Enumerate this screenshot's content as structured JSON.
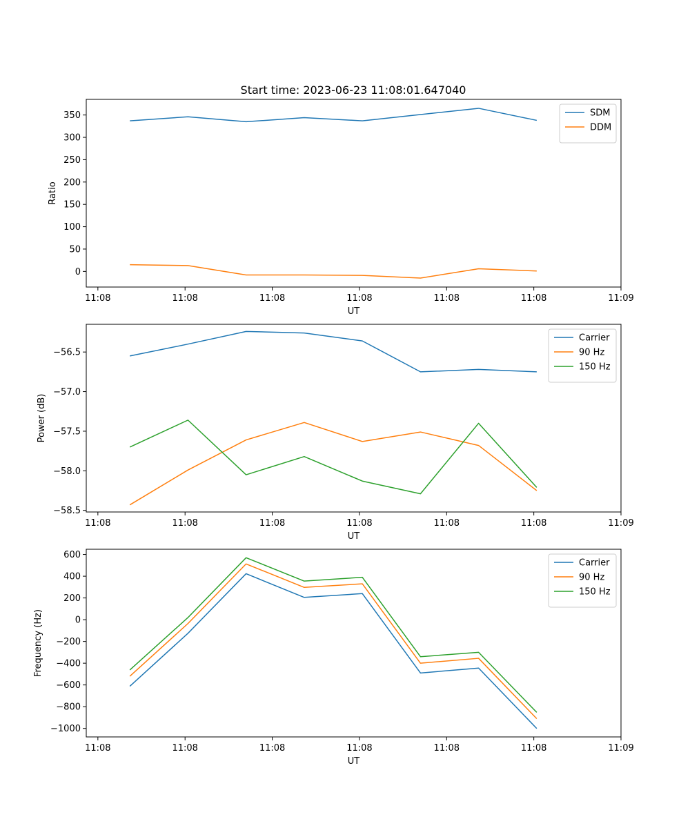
{
  "title": "Start time: 2023-06-23 11:08:01.647040",
  "chart_data": [
    {
      "type": "line",
      "title": "Start time: 2023-06-23 11:08:01.647040",
      "xlabel": "UT",
      "ylabel": "Ratio",
      "x": [
        1.0,
        2.0,
        3.0,
        4.0,
        5.0,
        6.0,
        7.0,
        8.0
      ],
      "xlim": [
        0.25,
        9.45
      ],
      "xticks": [
        0.45,
        1.95,
        3.45,
        4.95,
        6.45,
        7.95,
        9.45
      ],
      "xticklabels": [
        "11:08",
        "11:08",
        "11:08",
        "11:08",
        "11:08",
        "11:08",
        "11:09"
      ],
      "ylim": [
        -35,
        385
      ],
      "yticks": [
        0,
        50,
        100,
        150,
        200,
        250,
        300,
        350
      ],
      "yticklabels": [
        "0",
        "50",
        "100",
        "150",
        "200",
        "250",
        "300",
        "350"
      ],
      "legend": "top-right",
      "series": [
        {
          "name": "SDM",
          "color": "#1f77b4",
          "values": [
            337,
            346,
            335,
            344,
            337,
            351,
            365,
            338
          ]
        },
        {
          "name": "DDM",
          "color": "#ff7f0e",
          "values": [
            15,
            13,
            -8,
            -8,
            -9,
            -15,
            6,
            1
          ]
        }
      ]
    },
    {
      "type": "line",
      "xlabel": "UT",
      "ylabel": "Power (dB)",
      "x": [
        1.0,
        2.0,
        3.0,
        4.0,
        5.0,
        6.0,
        7.0,
        8.0
      ],
      "xlim": [
        0.25,
        9.45
      ],
      "xticks": [
        0.45,
        1.95,
        3.45,
        4.95,
        6.45,
        7.95,
        9.45
      ],
      "xticklabels": [
        "11:08",
        "11:08",
        "11:08",
        "11:08",
        "11:08",
        "11:08",
        "11:09"
      ],
      "ylim": [
        -58.52,
        -56.15
      ],
      "yticks": [
        -58.5,
        -58.0,
        -57.5,
        -57.0,
        -56.5
      ],
      "yticklabels": [
        "−58.5",
        "−58.0",
        "−57.5",
        "−57.0",
        "−56.5"
      ],
      "legend": "top-right",
      "series": [
        {
          "name": "Carrier",
          "color": "#1f77b4",
          "values": [
            -56.55,
            -56.4,
            -56.24,
            -56.26,
            -56.36,
            -56.75,
            -56.72,
            -56.75
          ]
        },
        {
          "name": "90 Hz",
          "color": "#ff7f0e",
          "values": [
            -58.43,
            -57.99,
            -57.61,
            -57.39,
            -57.63,
            -57.51,
            -57.68,
            -58.25
          ]
        },
        {
          "name": "150 Hz",
          "color": "#2ca02c",
          "values": [
            -57.7,
            -57.36,
            -58.05,
            -57.82,
            -58.13,
            -58.29,
            -57.4,
            -58.21
          ]
        }
      ]
    },
    {
      "type": "line",
      "xlabel": "UT",
      "ylabel": "Frequency (Hz)",
      "x": [
        1.0,
        2.0,
        3.0,
        4.0,
        5.0,
        6.0,
        7.0,
        8.0
      ],
      "xlim": [
        0.25,
        9.45
      ],
      "xticks": [
        0.45,
        1.95,
        3.45,
        4.95,
        6.45,
        7.95,
        9.45
      ],
      "xticklabels": [
        "11:08",
        "11:08",
        "11:08",
        "11:08",
        "11:08",
        "11:08",
        "11:09"
      ],
      "ylim": [
        -1078,
        648
      ],
      "yticks": [
        -1000,
        -800,
        -600,
        -400,
        -200,
        0,
        200,
        400,
        600
      ],
      "yticklabels": [
        "−1000",
        "−800",
        "−600",
        "−400",
        "−200",
        "0",
        "200",
        "400",
        "600"
      ],
      "legend": "top-right",
      "series": [
        {
          "name": "Carrier",
          "color": "#1f77b4",
          "values": [
            -612,
            -125,
            423,
            205,
            240,
            -490,
            -445,
            -1000
          ]
        },
        {
          "name": "90 Hz",
          "color": "#ff7f0e",
          "values": [
            -520,
            -35,
            513,
            297,
            330,
            -400,
            -355,
            -910
          ]
        },
        {
          "name": "150 Hz",
          "color": "#2ca02c",
          "values": [
            -462,
            20,
            570,
            355,
            390,
            -340,
            -300,
            -852
          ]
        }
      ]
    }
  ]
}
